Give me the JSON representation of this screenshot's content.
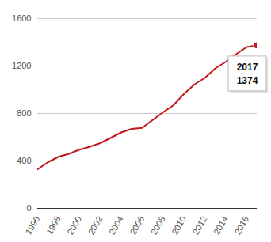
{
  "chart_data": {
    "type": "line",
    "x": [
      1996,
      1997,
      1998,
      1999,
      2000,
      2001,
      2002,
      2003,
      2004,
      2005,
      2006,
      2007,
      2008,
      2009,
      2010,
      2011,
      2012,
      2013,
      2014,
      2015,
      2016,
      2017
    ],
    "values": [
      330,
      390,
      435,
      460,
      495,
      520,
      550,
      595,
      640,
      670,
      678,
      745,
      810,
      870,
      965,
      1045,
      1100,
      1180,
      1235,
      1300,
      1360,
      1374
    ],
    "color": "#c4161c",
    "xlim": [
      1996,
      2017
    ],
    "xticks": [
      1996,
      1998,
      2000,
      2002,
      2004,
      2006,
      2008,
      2010,
      2012,
      2014,
      2016
    ],
    "ylim": [
      0,
      1600
    ],
    "yticks": [
      0,
      400,
      800,
      1200,
      1600
    ],
    "grid": true
  }
}
